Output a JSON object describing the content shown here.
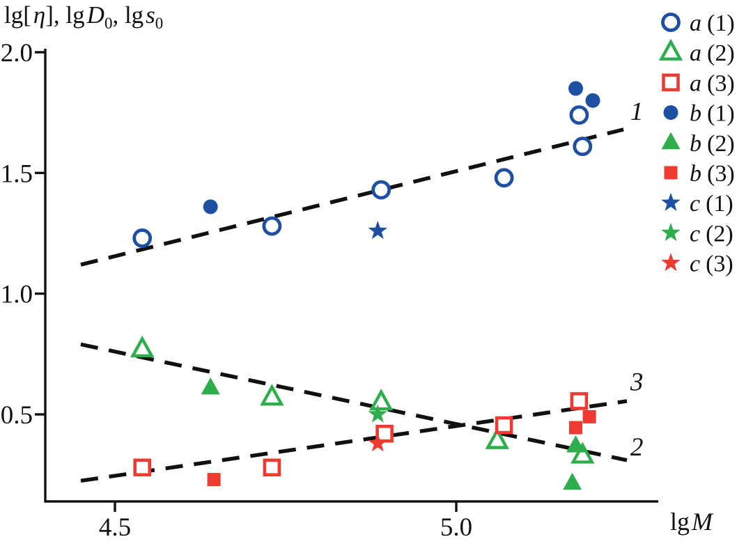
{
  "chart_data": {
    "type": "scatter",
    "title": "lg[η], lgD0, lgs0",
    "title_parts": {
      "lg1": "lg[",
      "eta": "η",
      "rb": "], lg",
      "D": "D",
      "d0": "0",
      "lg2": ", lg",
      "s": "s",
      "s0": "0"
    },
    "xlabel_parts": {
      "lg": "lg",
      "M": "M"
    },
    "axes": {
      "x": {
        "min": 4.4,
        "max": 5.3,
        "ticks": [
          4.5,
          5.0
        ],
        "tick_labels": [
          "4.5",
          "5.0"
        ]
      },
      "y": {
        "min": 0.14,
        "max": 2.0,
        "ticks": [
          0.5,
          1.0,
          1.5,
          2.0
        ],
        "tick_labels": [
          "0.5",
          "1.0",
          "1.5",
          "2.0"
        ]
      }
    },
    "colors": {
      "blue": "#1d4fa3",
      "green": "#2eae4b",
      "red": "#ee3a30",
      "axis": "#111111"
    },
    "series": [
      {
        "name": "a (1)",
        "marker": "circle",
        "fill": "open",
        "color": "blue",
        "points": [
          [
            4.54,
            1.23
          ],
          [
            4.73,
            1.28
          ],
          [
            4.89,
            1.43
          ],
          [
            5.07,
            1.48
          ],
          [
            5.18,
            1.74
          ],
          [
            5.185,
            1.61
          ]
        ]
      },
      {
        "name": "a (2)",
        "marker": "triangle",
        "fill": "open",
        "color": "green",
        "points": [
          [
            4.54,
            0.77
          ],
          [
            4.73,
            0.57
          ],
          [
            4.89,
            0.55
          ],
          [
            5.06,
            0.39
          ],
          [
            5.185,
            0.33
          ]
        ]
      },
      {
        "name": "a (3)",
        "marker": "square",
        "fill": "open",
        "color": "red",
        "points": [
          [
            4.54,
            0.28
          ],
          [
            4.73,
            0.28
          ],
          [
            4.895,
            0.42
          ],
          [
            5.07,
            0.455
          ],
          [
            5.18,
            0.555
          ]
        ]
      },
      {
        "name": "b (1)",
        "marker": "circle",
        "fill": "solid",
        "color": "blue",
        "points": [
          [
            4.64,
            1.36
          ],
          [
            5.175,
            1.85
          ],
          [
            5.2,
            1.8
          ]
        ]
      },
      {
        "name": "b (2)",
        "marker": "triangle",
        "fill": "solid",
        "color": "green",
        "points": [
          [
            4.64,
            0.61
          ],
          [
            5.175,
            0.37
          ],
          [
            5.17,
            0.215
          ]
        ]
      },
      {
        "name": "b (3)",
        "marker": "square",
        "fill": "solid",
        "color": "red",
        "points": [
          [
            4.645,
            0.23
          ],
          [
            5.195,
            0.49
          ],
          [
            5.175,
            0.445
          ]
        ]
      },
      {
        "name": "c (1)",
        "marker": "star",
        "fill": "solid",
        "color": "blue",
        "points": [
          [
            4.885,
            1.26
          ]
        ]
      },
      {
        "name": "c (2)",
        "marker": "star",
        "fill": "solid",
        "color": "green",
        "points": [
          [
            4.885,
            0.5
          ]
        ]
      },
      {
        "name": "c (3)",
        "marker": "star",
        "fill": "solid",
        "color": "red",
        "points": [
          [
            4.885,
            0.38
          ]
        ]
      }
    ],
    "trend_lines": [
      {
        "label": "1",
        "x1": 4.45,
        "y1": 1.12,
        "x2": 5.245,
        "y2": 1.68,
        "label_x": 5.255,
        "label_y": 1.72
      },
      {
        "label": "2",
        "x1": 4.45,
        "y1": 0.79,
        "x2": 5.25,
        "y2": 0.31,
        "label_x": 5.255,
        "label_y": 0.33
      },
      {
        "label": "3",
        "x1": 4.45,
        "y1": 0.225,
        "x2": 5.25,
        "y2": 0.555,
        "label_x": 5.255,
        "label_y": 0.6
      }
    ],
    "legend": [
      {
        "letter": "a",
        "suffix": "(1)",
        "marker": "circle",
        "fill": "open",
        "color": "blue"
      },
      {
        "letter": "a",
        "suffix": "(2)",
        "marker": "triangle",
        "fill": "open",
        "color": "green"
      },
      {
        "letter": "a",
        "suffix": "(3)",
        "marker": "square",
        "fill": "open",
        "color": "red"
      },
      {
        "letter": "b",
        "suffix": "(1)",
        "marker": "circle",
        "fill": "solid",
        "color": "blue"
      },
      {
        "letter": "b",
        "suffix": "(2)",
        "marker": "triangle",
        "fill": "solid",
        "color": "green"
      },
      {
        "letter": "b",
        "suffix": "(3)",
        "marker": "square",
        "fill": "solid",
        "color": "red"
      },
      {
        "letter": "c",
        "suffix": "(1)",
        "marker": "star",
        "fill": "solid",
        "color": "blue"
      },
      {
        "letter": "c",
        "suffix": "(2)",
        "marker": "star",
        "fill": "solid",
        "color": "green"
      },
      {
        "letter": "c",
        "suffix": "(3)",
        "marker": "star",
        "fill": "solid",
        "color": "red"
      }
    ]
  }
}
